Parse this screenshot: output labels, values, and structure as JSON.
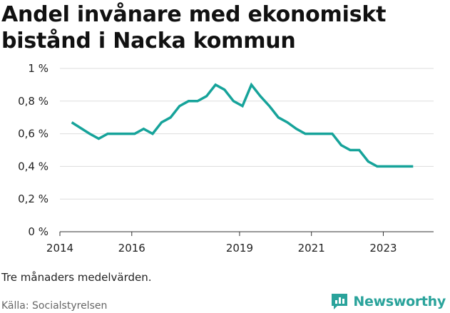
{
  "header": {
    "title": "Andel invånare med ekonomiskt bistånd i Nacka kommun"
  },
  "footer": {
    "note": "Tre månaders medelvärden.",
    "source": "Källa: Socialstyrelsen",
    "brand": "Newsworthy"
  },
  "colors": {
    "line": "#16a39a",
    "grid": "#dddddd",
    "brand": "#2aa39b"
  },
  "icons": {
    "brand": "newsworthy-logo-icon"
  },
  "chart_data": {
    "type": "line",
    "title": "Andel invånare med ekonomiskt bistånd i Nacka kommun",
    "xlabel": "",
    "ylabel": "",
    "ylim": [
      0,
      1
    ],
    "xlim": [
      2014,
      2024.4
    ],
    "grid": true,
    "legend": "none",
    "y_ticks": [
      {
        "value": 0,
        "label": "0 %"
      },
      {
        "value": 0.2,
        "label": "0,2 %"
      },
      {
        "value": 0.4,
        "label": "0,4 %"
      },
      {
        "value": 0.6,
        "label": "0,6 %"
      },
      {
        "value": 0.8,
        "label": "0,8 %"
      },
      {
        "value": 1,
        "label": "1 %"
      }
    ],
    "x_ticks": [
      {
        "value": 2014,
        "label": "2014"
      },
      {
        "value": 2016,
        "label": "2016"
      },
      {
        "value": 2019,
        "label": "2019"
      },
      {
        "value": 2021,
        "label": "2021"
      },
      {
        "value": 2023,
        "label": "2023"
      }
    ],
    "series": [
      {
        "x": [
          2014.33,
          2014.83,
          2015.08,
          2015.33,
          2015.58,
          2015.83,
          2016.08,
          2016.33,
          2016.58,
          2016.83,
          2017.08,
          2017.33,
          2017.58,
          2017.83,
          2018.08,
          2018.33,
          2018.58,
          2018.83,
          2019.08,
          2019.33,
          2019.58,
          2019.83,
          2020.08,
          2020.33,
          2020.58,
          2020.83,
          2021.08,
          2021.33,
          2021.58,
          2021.83,
          2022.08,
          2022.33,
          2022.58,
          2022.83,
          2023.08,
          2023.33,
          2023.58,
          2023.83
        ],
        "values": [
          0.67,
          0.6,
          0.57,
          0.6,
          0.6,
          0.6,
          0.6,
          0.63,
          0.6,
          0.67,
          0.7,
          0.77,
          0.8,
          0.8,
          0.83,
          0.9,
          0.87,
          0.8,
          0.77,
          0.9,
          0.83,
          0.77,
          0.7,
          0.67,
          0.63,
          0.6,
          0.6,
          0.6,
          0.6,
          0.53,
          0.5,
          0.5,
          0.43,
          0.4,
          0.4,
          0.4,
          0.4,
          0.4
        ]
      }
    ]
  }
}
